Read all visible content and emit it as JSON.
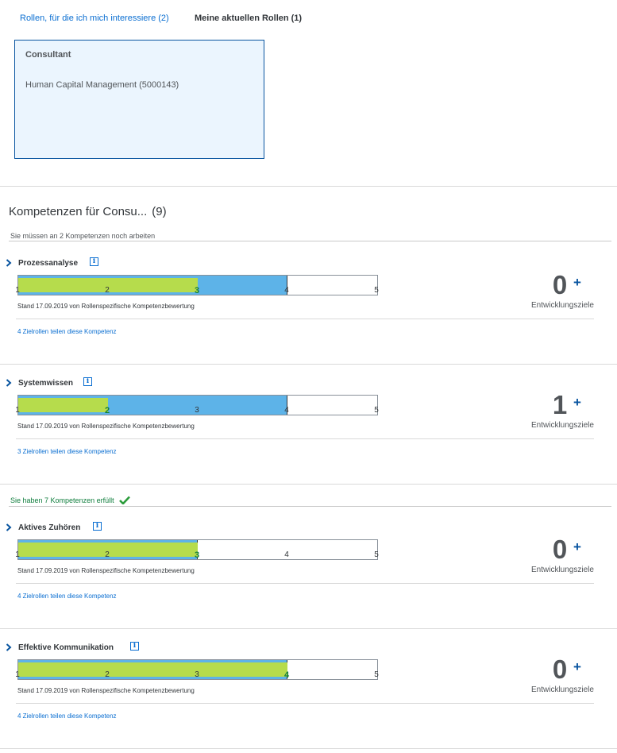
{
  "tabs": {
    "interests_label": "Rollen, für die ich mich interessiere (2)",
    "current_label": "Meine aktuellen Rollen (1)"
  },
  "role": {
    "title": "Consultant",
    "org": "Human Capital Management (5000143)"
  },
  "section": {
    "title": "Kompetenzen für Consu...",
    "count": "(9)"
  },
  "groups": {
    "todo_label": "Sie müssen an 2 Kompetenzen noch arbeiten",
    "done_label": "Sie haben 7 Kompetenzen erfüllt"
  },
  "scale": [
    "1",
    "2",
    "3",
    "4",
    "5"
  ],
  "colors": {
    "required": "#5db3e8",
    "actual": "#b6dc4c",
    "link": "#0a6ed1",
    "success": "#107e3e"
  },
  "goals_label": "Entwicklungsziele",
  "add_goal_label": "+",
  "competencies": [
    {
      "name": "Prozessanalyse",
      "required_level": 4,
      "actual_level": 3,
      "stand": "Stand 17.09.2019 von Rollenspezifische Kompetenzbewertung",
      "share": "4 Zielrollen teilen diese Kompetenz",
      "goals": "0"
    },
    {
      "name": "Systemwissen",
      "required_level": 4,
      "actual_level": 2,
      "stand": "Stand 17.09.2019 von Rollenspezifische Kompetenzbewertung",
      "share": "3 Zielrollen teilen diese Kompetenz",
      "goals": "1"
    },
    {
      "name": "Aktives Zuhören",
      "required_level": 3,
      "actual_level": 3,
      "stand": "Stand 17.09.2019 von Rollenspezifische Kompetenzbewertung",
      "share": "4 Zielrollen teilen diese Kompetenz",
      "goals": "0"
    },
    {
      "name": "Effektive Kommunikation",
      "required_level": 4,
      "actual_level": 4,
      "stand": "Stand 17.09.2019 von Rollenspezifische Kompetenzbewertung",
      "share": "4 Zielrollen teilen diese Kompetenz",
      "goals": "0"
    }
  ]
}
